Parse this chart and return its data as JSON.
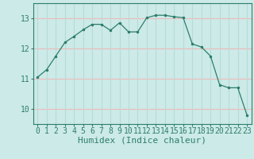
{
  "x": [
    0,
    1,
    2,
    3,
    4,
    5,
    6,
    7,
    8,
    9,
    10,
    11,
    12,
    13,
    14,
    15,
    16,
    17,
    18,
    19,
    20,
    21,
    22,
    23
  ],
  "y": [
    11.05,
    11.3,
    11.75,
    12.2,
    12.4,
    12.62,
    12.8,
    12.8,
    12.6,
    12.85,
    12.55,
    12.55,
    13.02,
    13.1,
    13.1,
    13.05,
    13.02,
    12.15,
    12.05,
    11.75,
    10.8,
    10.7,
    10.7,
    9.8
  ],
  "line_color": "#2d7d6e",
  "marker_color": "#2d7d6e",
  "bg_color": "#cceae7",
  "grid_color_h": "#f0b8b8",
  "grid_color_v": "#b8dbd8",
  "axis_color": "#2d7d6e",
  "xlabel": "Humidex (Indice chaleur)",
  "ylim": [
    9.5,
    13.5
  ],
  "yticks": [
    10,
    11,
    12,
    13
  ],
  "xticks": [
    0,
    1,
    2,
    3,
    4,
    5,
    6,
    7,
    8,
    9,
    10,
    11,
    12,
    13,
    14,
    15,
    16,
    17,
    18,
    19,
    20,
    21,
    22,
    23
  ],
  "tick_color": "#2d7d6e",
  "font_size": 7,
  "xlabel_fontsize": 8
}
